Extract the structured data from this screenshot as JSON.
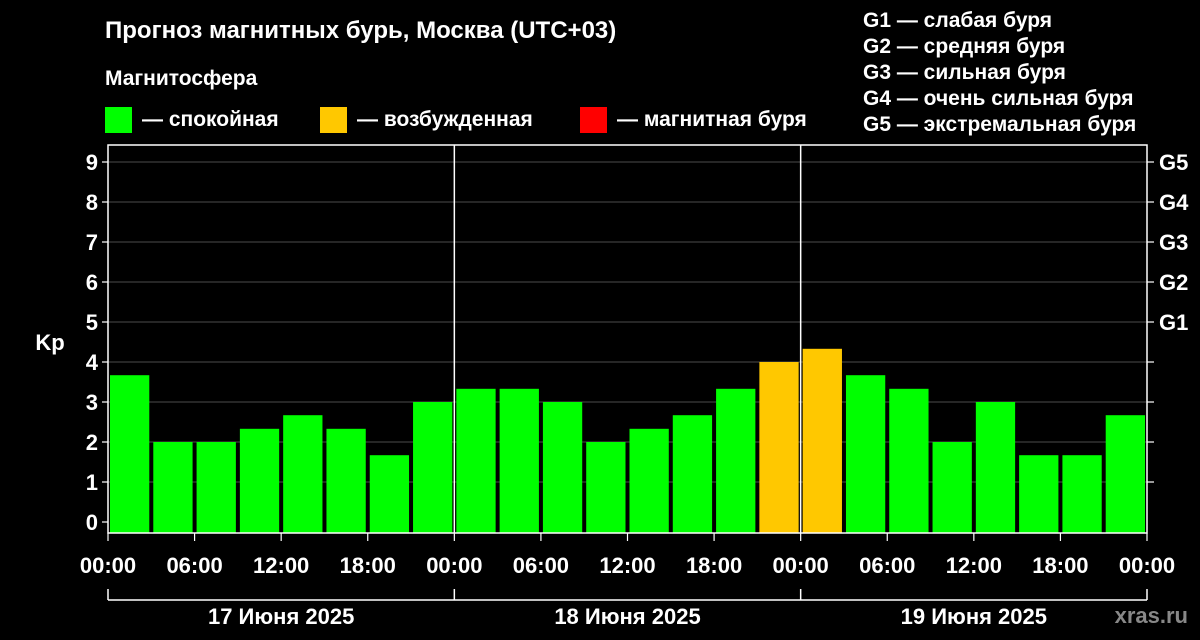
{
  "title": "Прогноз магнитных бурь, Москва (UTC+03)",
  "magnetosphere_label": "Магнитосфера",
  "legend": [
    {
      "color": "#00ff00",
      "label": "— спокойная"
    },
    {
      "color": "#ffc800",
      "label": "— возбужденная"
    },
    {
      "color": "#ff0000",
      "label": "— магнитная буря"
    }
  ],
  "g_scale": [
    "G1 — слабая буря",
    "G2 — средняя буря",
    "G3 — сильная буря",
    "G4 — очень сильная буря",
    "G5 — экстремальная буря"
  ],
  "watermark": "xras.ru",
  "chart_data": {
    "type": "bar",
    "ylabel": "Kp",
    "ylim": [
      0,
      9
    ],
    "y_ticks": [
      "0",
      "1",
      "2",
      "3",
      "4",
      "5",
      "6",
      "7",
      "8",
      "9"
    ],
    "right_ticks": [
      {
        "kp": 5,
        "label": "G1"
      },
      {
        "kp": 6,
        "label": "G2"
      },
      {
        "kp": 7,
        "label": "G3"
      },
      {
        "kp": 8,
        "label": "G4"
      },
      {
        "kp": 9,
        "label": "G5"
      }
    ],
    "x_tick_labels": [
      "00:00",
      "06:00",
      "12:00",
      "18:00",
      "00:00",
      "06:00",
      "12:00",
      "18:00",
      "00:00",
      "06:00",
      "12:00",
      "18:00",
      "00:00"
    ],
    "days": [
      "17 Июня 2025",
      "18 Июня 2025",
      "19 Июня 2025"
    ],
    "values": [
      3.67,
      2.0,
      2.0,
      2.33,
      2.67,
      2.33,
      1.67,
      3.0,
      3.33,
      3.33,
      3.0,
      2.0,
      2.33,
      2.67,
      3.33,
      4.0,
      4.33,
      3.67,
      3.33,
      2.0,
      3.0,
      1.67,
      1.67,
      2.67
    ],
    "bar_status": [
      "quiet",
      "quiet",
      "quiet",
      "quiet",
      "quiet",
      "quiet",
      "quiet",
      "quiet",
      "quiet",
      "quiet",
      "quiet",
      "quiet",
      "quiet",
      "quiet",
      "quiet",
      "active",
      "active",
      "quiet",
      "quiet",
      "quiet",
      "quiet",
      "quiet",
      "quiet",
      "quiet"
    ],
    "status_colors": {
      "quiet": "#00ff00",
      "active": "#ffc800",
      "storm": "#ff0000"
    }
  }
}
